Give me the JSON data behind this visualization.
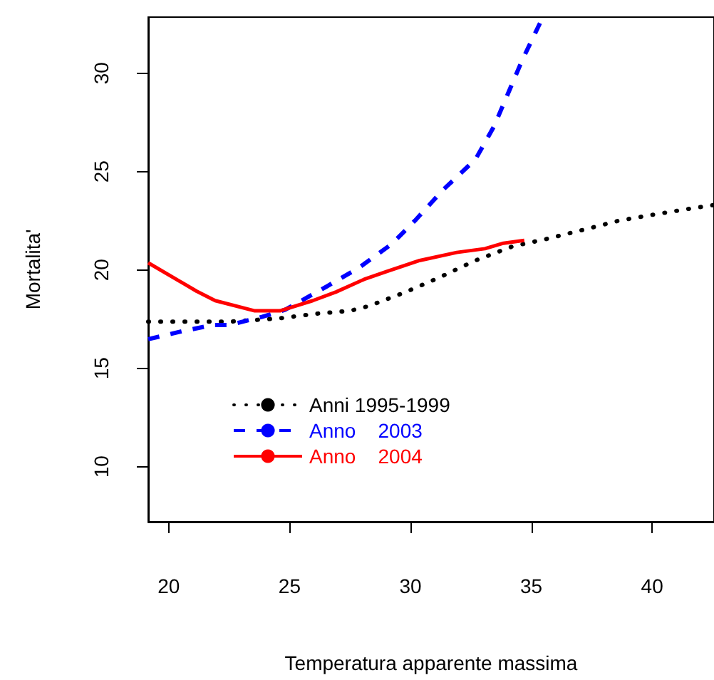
{
  "chart_data": {
    "type": "line",
    "xlabel": "Temperatura apparente massima",
    "ylabel": "Mortalita'",
    "xlim": [
      19.15,
      42.56
    ],
    "ylim": [
      7.2,
      32.85
    ],
    "xticks": [
      20,
      25,
      30,
      35,
      40
    ],
    "yticks": [
      10,
      15,
      20,
      25,
      30
    ],
    "grid": false,
    "legend": "bottom left",
    "marker": "none",
    "series": [
      {
        "name": "Anni 1995-1999",
        "color": "#000000",
        "line_style": "dotted",
        "x": [
          19.15,
          22.5,
          24.6,
          26.15,
          27.5,
          28.27,
          29.81,
          31.15,
          32.69,
          34.23,
          35.58,
          37.12,
          38.65,
          40,
          41.54,
          42.56
        ],
        "values": [
          17.37,
          17.37,
          17.54,
          17.78,
          17.92,
          18.16,
          18.88,
          19.59,
          20.48,
          21.2,
          21.56,
          22.03,
          22.51,
          22.8,
          23.11,
          23.3
        ]
      },
      {
        "name": "Anno    2003",
        "color": "#0000ff",
        "line_style": "dashed",
        "x": [
          19.15,
          20.58,
          21.83,
          22.5,
          23.85,
          24.81,
          26.54,
          27.88,
          29.23,
          30.19,
          31.35,
          32.69,
          33.46,
          34.62,
          35.48
        ],
        "values": [
          16.48,
          16.89,
          17.2,
          17.2,
          17.61,
          17.97,
          19.16,
          20.12,
          21.32,
          22.51,
          24.07,
          25.62,
          27.3,
          30.65,
          32.85
        ]
      },
      {
        "name": "Anno    2004",
        "color": "#ff0000",
        "line_style": "solid",
        "x": [
          19.15,
          21.15,
          21.92,
          23.56,
          24.6,
          25.96,
          26.92,
          28.08,
          29.04,
          30.38,
          31.92,
          33.08,
          33.85,
          34.71
        ],
        "values": [
          20.36,
          18.92,
          18.44,
          17.92,
          17.92,
          18.44,
          18.88,
          19.52,
          19.93,
          20.48,
          20.89,
          21.08,
          21.36,
          21.5
        ]
      }
    ]
  }
}
